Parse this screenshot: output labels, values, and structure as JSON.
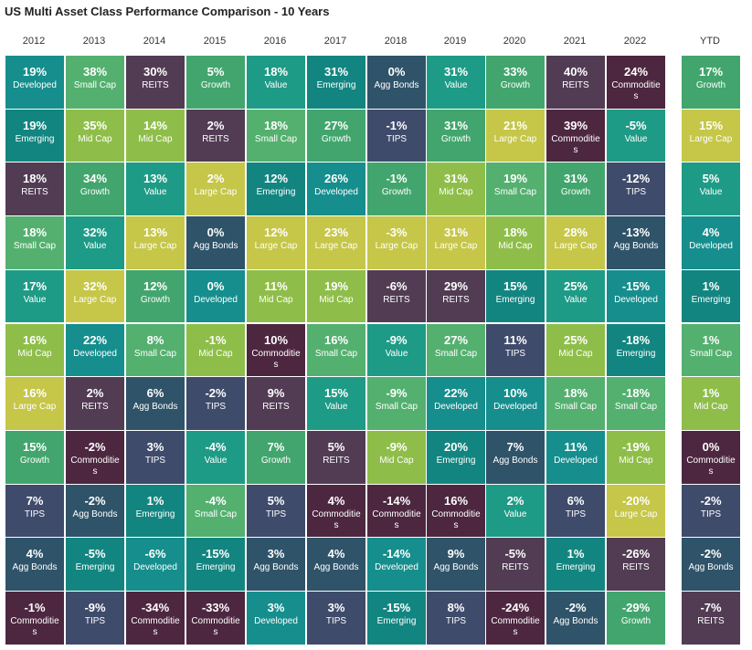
{
  "title": "US Multi Asset Class Performance Comparison - 10 Years",
  "colors": {
    "Developed": "#158e8d",
    "Small Cap": "#54b06f",
    "REITS": "#523c54",
    "Growth": "#42a56d",
    "Value": "#1e9b86",
    "Emerging": "#138580",
    "Agg Bonds": "#2f5369",
    "Mid Cap": "#8ebe49",
    "TIPS": "#3f4b6b",
    "Large Cap": "#c6c649",
    "Commodities": "#4d2740"
  },
  "chart_data": {
    "type": "table",
    "title": "US Multi Asset Class Performance Comparison - 10 Years",
    "columns": [
      "2012",
      "2013",
      "2014",
      "2015",
      "2016",
      "2017",
      "2018",
      "2019",
      "2020",
      "2021",
      "2022",
      "YTD"
    ],
    "cells": [
      [
        [
          "19%",
          "Developed"
        ],
        [
          "19%",
          "Emerging"
        ],
        [
          "18%",
          "REITS"
        ],
        [
          "18%",
          "Small Cap"
        ],
        [
          "17%",
          "Value"
        ],
        [
          "16%",
          "Mid Cap"
        ],
        [
          "16%",
          "Large Cap"
        ],
        [
          "15%",
          "Growth"
        ],
        [
          "7%",
          "TIPS"
        ],
        [
          "4%",
          "Agg Bonds"
        ],
        [
          "-1%",
          "Commodities"
        ]
      ],
      [
        [
          "38%",
          "Small Cap"
        ],
        [
          "35%",
          "Mid Cap"
        ],
        [
          "34%",
          "Growth"
        ],
        [
          "32%",
          "Value"
        ],
        [
          "32%",
          "Large Cap"
        ],
        [
          "22%",
          "Developed"
        ],
        [
          "2%",
          "REITS"
        ],
        [
          "-2%",
          "Commodities"
        ],
        [
          "-2%",
          "Agg Bonds"
        ],
        [
          "-5%",
          "Emerging"
        ],
        [
          "-9%",
          "TIPS"
        ]
      ],
      [
        [
          "30%",
          "REITS"
        ],
        [
          "14%",
          "Mid Cap"
        ],
        [
          "13%",
          "Value"
        ],
        [
          "13%",
          "Large Cap"
        ],
        [
          "12%",
          "Growth"
        ],
        [
          "8%",
          "Small Cap"
        ],
        [
          "6%",
          "Agg Bonds"
        ],
        [
          "3%",
          "TIPS"
        ],
        [
          "1%",
          "Emerging"
        ],
        [
          "-6%",
          "Developed"
        ],
        [
          "-34%",
          "Commodities"
        ]
      ],
      [
        [
          "5%",
          "Growth"
        ],
        [
          "2%",
          "REITS"
        ],
        [
          "2%",
          "Large Cap"
        ],
        [
          "0%",
          "Agg Bonds"
        ],
        [
          "0%",
          "Developed"
        ],
        [
          "-1%",
          "Mid Cap"
        ],
        [
          "-2%",
          "TIPS"
        ],
        [
          "-4%",
          "Value"
        ],
        [
          "-4%",
          "Small Cap"
        ],
        [
          "-15%",
          "Emerging"
        ],
        [
          "-33%",
          "Commodities"
        ]
      ],
      [
        [
          "18%",
          "Value"
        ],
        [
          "18%",
          "Small Cap"
        ],
        [
          "12%",
          "Emerging"
        ],
        [
          "12%",
          "Large Cap"
        ],
        [
          "11%",
          "Mid Cap"
        ],
        [
          "10%",
          "Commodities"
        ],
        [
          "9%",
          "REITS"
        ],
        [
          "7%",
          "Growth"
        ],
        [
          "5%",
          "TIPS"
        ],
        [
          "3%",
          "Agg Bonds"
        ],
        [
          "3%",
          "Developed"
        ]
      ],
      [
        [
          "31%",
          "Emerging"
        ],
        [
          "27%",
          "Growth"
        ],
        [
          "26%",
          "Developed"
        ],
        [
          "23%",
          "Large Cap"
        ],
        [
          "19%",
          "Mid Cap"
        ],
        [
          "16%",
          "Small Cap"
        ],
        [
          "15%",
          "Value"
        ],
        [
          "5%",
          "REITS"
        ],
        [
          "4%",
          "Commodities"
        ],
        [
          "4%",
          "Agg Bonds"
        ],
        [
          "3%",
          "TIPS"
        ]
      ],
      [
        [
          "0%",
          "Agg Bonds"
        ],
        [
          "-1%",
          "TIPS"
        ],
        [
          "-1%",
          "Growth"
        ],
        [
          "-3%",
          "Large Cap"
        ],
        [
          "-6%",
          "REITS"
        ],
        [
          "-9%",
          "Value"
        ],
        [
          "-9%",
          "Small Cap"
        ],
        [
          "-9%",
          "Mid Cap"
        ],
        [
          "-14%",
          "Commodities"
        ],
        [
          "-14%",
          "Developed"
        ],
        [
          "-15%",
          "Emerging"
        ]
      ],
      [
        [
          "31%",
          "Value"
        ],
        [
          "31%",
          "Growth"
        ],
        [
          "31%",
          "Mid Cap"
        ],
        [
          "31%",
          "Large Cap"
        ],
        [
          "29%",
          "REITS"
        ],
        [
          "27%",
          "Small Cap"
        ],
        [
          "22%",
          "Developed"
        ],
        [
          "20%",
          "Emerging"
        ],
        [
          "16%",
          "Commodities"
        ],
        [
          "9%",
          "Agg Bonds"
        ],
        [
          "8%",
          "TIPS"
        ]
      ],
      [
        [
          "33%",
          "Growth"
        ],
        [
          "21%",
          "Large Cap"
        ],
        [
          "19%",
          "Small Cap"
        ],
        [
          "18%",
          "Mid Cap"
        ],
        [
          "15%",
          "Emerging"
        ],
        [
          "11%",
          "TIPS"
        ],
        [
          "10%",
          "Developed"
        ],
        [
          "7%",
          "Agg Bonds"
        ],
        [
          "2%",
          "Value"
        ],
        [
          "-5%",
          "REITS"
        ],
        [
          "-24%",
          "Commodities"
        ]
      ],
      [
        [
          "40%",
          "REITS"
        ],
        [
          "39%",
          "Commodities"
        ],
        [
          "31%",
          "Growth"
        ],
        [
          "28%",
          "Large Cap"
        ],
        [
          "25%",
          "Value"
        ],
        [
          "25%",
          "Mid Cap"
        ],
        [
          "18%",
          "Small Cap"
        ],
        [
          "11%",
          "Developed"
        ],
        [
          "6%",
          "TIPS"
        ],
        [
          "1%",
          "Emerging"
        ],
        [
          "-2%",
          "Agg Bonds"
        ]
      ],
      [
        [
          "24%",
          "Commodities"
        ],
        [
          "-5%",
          "Value"
        ],
        [
          "-12%",
          "TIPS"
        ],
        [
          "-13%",
          "Agg Bonds"
        ],
        [
          "-15%",
          "Developed"
        ],
        [
          "-18%",
          "Emerging"
        ],
        [
          "-18%",
          "Small Cap"
        ],
        [
          "-19%",
          "Mid Cap"
        ],
        [
          "-20%",
          "Large Cap"
        ],
        [
          "-26%",
          "REITS"
        ],
        [
          "-29%",
          "Growth"
        ]
      ],
      [
        [
          "17%",
          "Growth"
        ],
        [
          "15%",
          "Large Cap"
        ],
        [
          "5%",
          "Value"
        ],
        [
          "4%",
          "Developed"
        ],
        [
          "1%",
          "Emerging"
        ],
        [
          "1%",
          "Small Cap"
        ],
        [
          "1%",
          "Mid Cap"
        ],
        [
          "0%",
          "Commodities"
        ],
        [
          "-2%",
          "TIPS"
        ],
        [
          "-2%",
          "Agg Bonds"
        ],
        [
          "-7%",
          "REITS"
        ]
      ]
    ]
  }
}
